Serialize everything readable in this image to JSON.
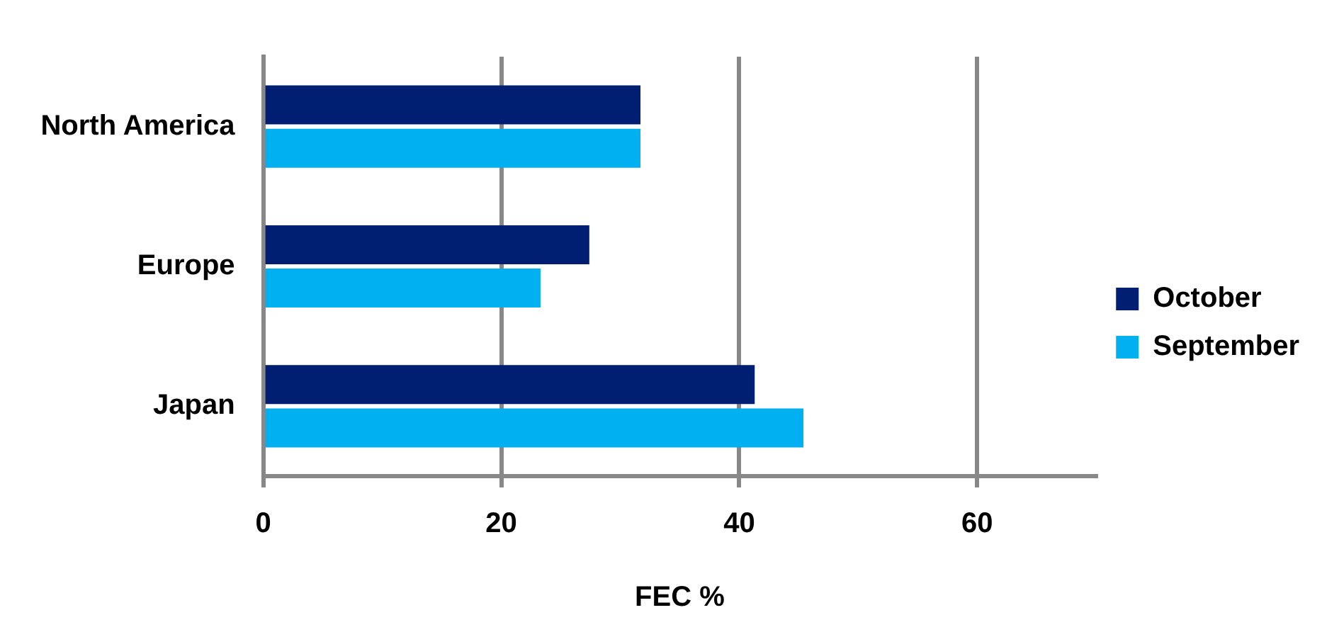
{
  "chart_data": {
    "type": "bar",
    "orientation": "horizontal",
    "categories": [
      "North America",
      "Europe",
      "Japan"
    ],
    "xlabel": "FEC %",
    "xlim": [
      0,
      70
    ],
    "xticks": [
      0,
      20,
      40,
      60
    ],
    "grid": "x",
    "legend": "right",
    "series": [
      {
        "name": "October",
        "color": "#001f73",
        "values": [
          31.7,
          27.4,
          41.3
        ]
      },
      {
        "name": "September",
        "color": "#00b0f0",
        "values": [
          31.7,
          23.3,
          45.4
        ]
      }
    ]
  }
}
